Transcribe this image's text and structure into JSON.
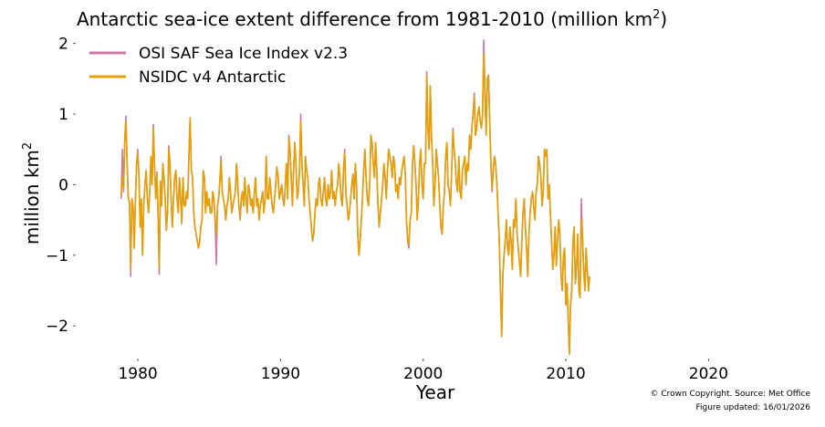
{
  "chart_data": {
    "type": "line",
    "title": "Antarctic sea-ice extent difference from 1981-2010 (million km",
    "title_sup": "2",
    "title_end": ")",
    "xlabel": "Year",
    "ylabel": "million km",
    "ylabel_sup": "2",
    "xlim": [
      1977.5,
      2026.5
    ],
    "ylim": [
      -2.45,
      2.15
    ],
    "xticks": [
      1980,
      1990,
      2000,
      2010,
      2020
    ],
    "xtick_labels": [
      "1980",
      "1990",
      "2000",
      "2010",
      "2020"
    ],
    "yticks": [
      2,
      1,
      0,
      -1,
      -2
    ],
    "ytick_labels": [
      "2",
      "1",
      "0",
      "−1",
      "−2"
    ],
    "legend_position": "top-left",
    "series": [
      {
        "name": "OSI SAF Sea Ice Index v2.3",
        "color": "#cc79a7",
        "x_start": 1978.83,
        "step_years": 0.0833333,
        "y": [
          -0.2,
          0.5,
          -0.1,
          0.65,
          0.97,
          0.3,
          -0.2,
          -0.25,
          -1.3,
          -0.2,
          -0.3,
          -0.9,
          -0.2,
          0.3,
          0.5,
          0.1,
          -0.6,
          -0.2,
          -1.0,
          -0.3,
          0.0,
          0.2,
          -0.2,
          -0.4,
          -0.1,
          0.4,
          0.0,
          0.85,
          0.3,
          -0.2,
          0.18,
          -0.4,
          -1.27,
          0.05,
          -0.3,
          0.3,
          0.1,
          -0.2,
          -0.65,
          -0.4,
          0.55,
          0.3,
          -0.2,
          -0.6,
          -0.2,
          0.1,
          0.2,
          -0.2,
          -0.4,
          0.1,
          -0.2,
          -0.55,
          0.1,
          -0.3,
          -0.3,
          -0.1,
          -0.2,
          0.4,
          0.9,
          0.2,
          0.1,
          -0.4,
          -0.6,
          -0.7,
          -0.8,
          -0.9,
          -0.8,
          -0.6,
          -0.5,
          0.2,
          0.1,
          -0.4,
          -0.1,
          -0.3,
          -0.2,
          -0.4,
          -0.4,
          -0.1,
          -0.2,
          -0.5,
          -1.13,
          -0.3,
          -0.2,
          0.05,
          0.4,
          -0.1,
          -0.2,
          -0.3,
          -0.5,
          -0.3,
          -0.2,
          0.1,
          -0.1,
          -0.4,
          -0.3,
          -0.2,
          -0.1,
          0.3,
          0.0,
          -0.3,
          -0.5,
          -0.2,
          -0.1,
          -0.3,
          0.1,
          -0.2,
          -0.4,
          0.0,
          -0.1,
          -0.3,
          -0.2,
          -0.4,
          -0.1,
          0.1,
          -0.3,
          -0.2,
          -0.5,
          -0.3,
          -0.2,
          -0.1,
          -0.4,
          -0.2,
          0.4,
          -0.2,
          -0.2,
          0.1,
          -0.1,
          -0.3,
          -0.4,
          -0.2,
          0.0,
          0.25,
          0.1,
          -0.2,
          -0.1,
          0.0,
          -0.2,
          -0.3,
          0.0,
          0.3,
          -0.2,
          0.7,
          0.5,
          0.1,
          -0.3,
          0.2,
          0.6,
          0.3,
          -0.2,
          -0.1,
          0.2,
          1.0,
          0.3,
          0.0,
          -0.3,
          0.4,
          0.2,
          0.1,
          -0.2,
          -0.4,
          -0.6,
          -0.8,
          -0.7,
          -0.4,
          -0.2,
          -0.3,
          0.0,
          0.1,
          -0.2,
          -0.3,
          -0.1,
          0.1,
          -0.2,
          -0.3,
          0.0,
          -0.2,
          -0.1,
          0.2,
          -0.2,
          -0.1,
          -0.3,
          -0.1,
          0.0,
          0.3,
          0.1,
          -0.2,
          -0.3,
          0.2,
          0.5,
          -0.1,
          -0.3,
          -0.5,
          -0.4,
          -0.2,
          0.0,
          0.15,
          -0.2,
          0.3,
          0.0,
          -0.7,
          -1.0,
          -0.8,
          -0.5,
          -0.2,
          0.2,
          0.5,
          0.1,
          -0.2,
          -0.3,
          0.0,
          0.7,
          0.6,
          0.3,
          0.1,
          0.6,
          0.2,
          -0.3,
          -0.6,
          -0.4,
          -0.2,
          0.0,
          0.3,
          0.1,
          -0.2,
          0.2,
          0.5,
          0.4,
          0.3,
          0.1,
          0.4,
          0.3,
          -0.1,
          0.0,
          -0.2,
          0.1,
          0.0,
          0.2,
          0.3,
          0.4,
          0.15,
          -0.5,
          -0.8,
          -0.9,
          -0.5,
          -0.4,
          0.3,
          0.55,
          0.3,
          0.0,
          -0.5,
          -0.2,
          0.3,
          0.5,
          0.0,
          -0.2,
          0.3,
          0.3,
          1.6,
          0.8,
          0.5,
          1.4,
          0.7,
          0.3,
          -0.3,
          0.0,
          0.5,
          0.3,
          0.1,
          -0.3,
          -0.6,
          -0.7,
          -0.3,
          -0.1,
          0.4,
          0.6,
          0.0,
          -0.1,
          -0.3,
          0.2,
          0.8,
          0.5,
          0.3,
          0.0,
          -0.1,
          0.4,
          -0.1,
          -0.2,
          0.2,
          0.3,
          0.4,
          0.0,
          0.3,
          0.2,
          0.7,
          0.5,
          0.8,
          1.0,
          1.3,
          0.7,
          0.8,
          1.0,
          1.1,
          0.9,
          0.8,
          1.0,
          2.05,
          1.3,
          0.7,
          1.5,
          1.55,
          0.9,
          0.3,
          -0.1,
          0.2,
          0.4,
          0.3,
          0.0,
          -0.4,
          -0.8,
          -1.5,
          -2.15,
          -1.3,
          -1.0,
          -0.8,
          -0.5,
          -0.9,
          -1.0,
          -0.6,
          -0.8,
          -1.2,
          -0.5,
          -0.6,
          -0.2,
          -0.7,
          -0.9,
          -1.1,
          -1.3,
          -0.8,
          -0.4,
          -0.2,
          -0.6,
          -0.9,
          -1.3,
          -0.7,
          -0.4,
          -0.2,
          -0.1,
          -0.3,
          -0.5,
          -0.1,
          0.0,
          0.4,
          0.3,
          0.1,
          -0.3,
          -0.1,
          0.5,
          0.4,
          0.5,
          -0.2,
          0.0,
          -0.4,
          -0.8,
          -1.2,
          -1.0,
          -0.6,
          -1.15,
          -0.8,
          -0.5,
          -0.7,
          -1.3,
          -1.5,
          -1.0,
          -0.9,
          -1.7,
          -1.4,
          -1.9,
          -2.4,
          -1.7,
          -1.5,
          -0.8,
          -0.6,
          -1.4,
          -1.2,
          -0.7,
          -1.5,
          -1.6,
          -0.2,
          -0.7,
          -1.2,
          -1.5,
          -0.9,
          -1.2,
          -1.5,
          -1.3
        ],
        "values_note": "monthly"
      },
      {
        "name": "NSIDC v4 Antarctic",
        "color": "#e69f00",
        "x_start": 1978.83,
        "step_years": 0.0833333,
        "y": [
          -0.15,
          0.1,
          -0.05,
          0.6,
          0.9,
          0.3,
          -0.2,
          -0.25,
          -1.2,
          -0.2,
          -0.3,
          -0.9,
          -0.2,
          0.3,
          0.45,
          0.1,
          -0.6,
          -0.2,
          -1.0,
          -0.3,
          0.0,
          0.2,
          -0.2,
          -0.4,
          -0.1,
          0.4,
          0.0,
          0.8,
          0.3,
          -0.2,
          0.15,
          -0.4,
          -1.2,
          0.05,
          -0.3,
          0.3,
          0.1,
          -0.2,
          -0.65,
          -0.4,
          0.5,
          0.3,
          -0.2,
          -0.6,
          -0.2,
          0.1,
          0.2,
          -0.2,
          -0.4,
          0.1,
          -0.2,
          -0.55,
          0.1,
          -0.3,
          -0.3,
          -0.1,
          -0.2,
          0.4,
          0.95,
          0.2,
          0.1,
          -0.4,
          -0.6,
          -0.7,
          -0.8,
          -0.9,
          -0.8,
          -0.6,
          -0.5,
          0.2,
          0.1,
          -0.4,
          -0.1,
          -0.3,
          -0.2,
          -0.4,
          -0.4,
          -0.1,
          -0.2,
          -0.5,
          -0.7,
          -0.3,
          -0.2,
          0.05,
          0.35,
          -0.1,
          -0.2,
          -0.3,
          -0.5,
          -0.3,
          -0.2,
          0.1,
          -0.1,
          -0.4,
          -0.3,
          -0.2,
          -0.1,
          0.3,
          0.0,
          -0.3,
          -0.5,
          -0.2,
          -0.1,
          -0.3,
          0.1,
          -0.2,
          -0.4,
          0.0,
          -0.1,
          -0.3,
          -0.2,
          -0.4,
          -0.1,
          0.1,
          -0.3,
          -0.2,
          -0.5,
          -0.3,
          -0.2,
          -0.1,
          -0.4,
          -0.2,
          0.4,
          -0.2,
          -0.2,
          0.1,
          -0.1,
          -0.3,
          -0.4,
          -0.2,
          0.0,
          0.25,
          0.1,
          -0.2,
          -0.1,
          0.0,
          -0.2,
          -0.3,
          0.0,
          0.3,
          -0.2,
          0.65,
          0.5,
          0.1,
          -0.3,
          0.2,
          0.6,
          0.3,
          -0.2,
          -0.1,
          0.2,
          0.9,
          0.3,
          0.0,
          -0.3,
          0.4,
          0.2,
          0.1,
          -0.2,
          -0.4,
          -0.6,
          -0.8,
          -0.7,
          -0.4,
          -0.2,
          -0.3,
          0.0,
          0.1,
          -0.2,
          -0.3,
          -0.1,
          0.1,
          -0.2,
          -0.3,
          0.0,
          -0.2,
          -0.1,
          0.2,
          -0.2,
          -0.1,
          -0.3,
          -0.1,
          0.0,
          0.3,
          0.1,
          -0.2,
          -0.3,
          0.2,
          0.45,
          -0.1,
          -0.3,
          -0.5,
          -0.4,
          -0.2,
          0.0,
          0.15,
          -0.2,
          0.3,
          0.0,
          -0.7,
          -1.0,
          -0.8,
          -0.5,
          -0.2,
          0.2,
          0.5,
          0.1,
          -0.2,
          -0.3,
          0.0,
          0.7,
          0.6,
          0.3,
          0.1,
          0.6,
          0.2,
          -0.3,
          -0.6,
          -0.4,
          -0.2,
          0.0,
          0.3,
          0.1,
          -0.2,
          0.2,
          0.5,
          0.4,
          0.3,
          0.1,
          0.4,
          0.3,
          -0.1,
          0.0,
          -0.2,
          0.1,
          0.0,
          0.2,
          0.3,
          0.4,
          0.15,
          -0.5,
          -0.8,
          -0.85,
          -0.5,
          -0.4,
          0.3,
          0.55,
          0.3,
          0.0,
          -0.5,
          -0.2,
          0.3,
          0.5,
          0.0,
          -0.2,
          0.3,
          0.3,
          1.55,
          0.8,
          0.5,
          1.4,
          0.7,
          0.3,
          -0.3,
          0.0,
          0.5,
          0.3,
          0.1,
          -0.3,
          -0.6,
          -0.7,
          -0.3,
          -0.1,
          0.4,
          0.6,
          0.0,
          -0.1,
          -0.3,
          0.2,
          0.75,
          0.5,
          0.3,
          0.0,
          -0.1,
          0.4,
          -0.1,
          -0.2,
          0.2,
          0.3,
          0.4,
          0.0,
          0.3,
          0.2,
          0.7,
          0.5,
          0.8,
          1.0,
          1.25,
          0.7,
          0.8,
          1.0,
          1.1,
          0.9,
          0.8,
          1.0,
          1.85,
          1.3,
          0.7,
          1.5,
          1.55,
          0.9,
          0.3,
          -0.05,
          0.2,
          0.4,
          0.3,
          0.0,
          -0.4,
          -0.8,
          -1.5,
          -2.15,
          -1.3,
          -1.0,
          -0.8,
          -0.5,
          -0.9,
          -1.0,
          -0.6,
          -0.8,
          -1.2,
          -0.5,
          -0.6,
          -0.2,
          -0.7,
          -0.9,
          -1.1,
          -1.3,
          -0.8,
          -0.4,
          -0.2,
          -0.6,
          -0.9,
          -1.3,
          -0.7,
          -0.4,
          -0.2,
          -0.1,
          -0.3,
          -0.5,
          -0.1,
          0.0,
          0.4,
          0.3,
          0.1,
          -0.3,
          -0.1,
          0.5,
          0.4,
          0.5,
          -0.2,
          0.0,
          -0.4,
          -0.8,
          -1.2,
          -1.0,
          -0.6,
          -1.15,
          -0.8,
          -0.5,
          -0.7,
          -1.3,
          -1.5,
          -1.0,
          -0.9,
          -1.7,
          -1.4,
          -1.9,
          -2.4,
          -1.7,
          -1.5,
          -0.8,
          -0.6,
          -1.4,
          -1.2,
          -0.7,
          -1.5,
          -1.6,
          -0.5,
          -0.7,
          -1.2,
          -1.5,
          -0.9,
          -1.2,
          -1.5,
          -1.3
        ],
        "values_note": "monthly"
      }
    ]
  },
  "footer": {
    "copyright": "© Crown Copyright. Source: Met Office",
    "updated": "Figure updated: 16/01/2026"
  }
}
